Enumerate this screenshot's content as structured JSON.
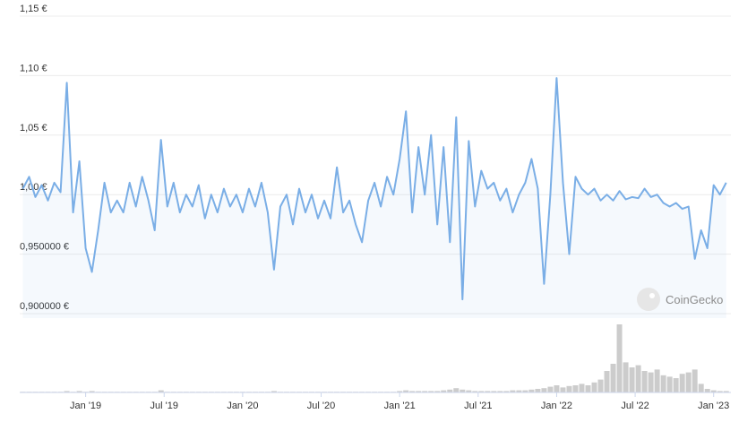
{
  "chart_data": {
    "type": "line",
    "watermark": "CoinGecko",
    "x": [
      2018.6,
      2018.64,
      2018.68,
      2018.72,
      2018.76,
      2018.8,
      2018.84,
      2018.88,
      2018.92,
      2018.96,
      2019.0,
      2019.04,
      2019.08,
      2019.12,
      2019.16,
      2019.2,
      2019.24,
      2019.28,
      2019.32,
      2019.36,
      2019.4,
      2019.44,
      2019.48,
      2019.52,
      2019.56,
      2019.6,
      2019.64,
      2019.68,
      2019.72,
      2019.76,
      2019.8,
      2019.84,
      2019.88,
      2019.92,
      2019.96,
      2020.0,
      2020.04,
      2020.08,
      2020.12,
      2020.16,
      2020.2,
      2020.24,
      2020.28,
      2020.32,
      2020.36,
      2020.4,
      2020.44,
      2020.48,
      2020.52,
      2020.56,
      2020.6,
      2020.64,
      2020.68,
      2020.72,
      2020.76,
      2020.8,
      2020.84,
      2020.88,
      2020.92,
      2020.96,
      2021.0,
      2021.04,
      2021.08,
      2021.12,
      2021.16,
      2021.2,
      2021.24,
      2021.28,
      2021.32,
      2021.36,
      2021.4,
      2021.44,
      2021.48,
      2021.52,
      2021.56,
      2021.6,
      2021.64,
      2021.68,
      2021.72,
      2021.76,
      2021.8,
      2021.84,
      2021.88,
      2021.92,
      2021.96,
      2022.0,
      2022.04,
      2022.08,
      2022.12,
      2022.16,
      2022.2,
      2022.24,
      2022.28,
      2022.32,
      2022.36,
      2022.4,
      2022.44,
      2022.48,
      2022.52,
      2022.56,
      2022.6,
      2022.64,
      2022.68,
      2022.72,
      2022.76,
      2022.8,
      2022.84,
      2022.88,
      2022.92,
      2022.96,
      2023.0,
      2023.04,
      2023.08
    ],
    "series": [
      {
        "color": "#7aaee6",
        "values": [
          1.005,
          1.015,
          0.998,
          1.008,
          0.995,
          1.01,
          1.002,
          1.094,
          0.985,
          1.028,
          0.955,
          0.935,
          0.97,
          1.01,
          0.985,
          0.995,
          0.985,
          1.01,
          0.99,
          1.015,
          0.995,
          0.97,
          1.046,
          0.99,
          1.01,
          0.985,
          1.0,
          0.99,
          1.008,
          0.98,
          1.0,
          0.985,
          1.005,
          0.99,
          1.0,
          0.985,
          1.005,
          0.99,
          1.01,
          0.985,
          0.937,
          0.99,
          1.0,
          0.975,
          1.005,
          0.985,
          1.0,
          0.98,
          0.995,
          0.98,
          1.023,
          0.985,
          0.995,
          0.975,
          0.96,
          0.995,
          1.01,
          0.99,
          1.015,
          1.0,
          1.03,
          1.07,
          0.985,
          1.04,
          1.0,
          1.05,
          0.975,
          1.04,
          0.96,
          1.065,
          0.912,
          1.045,
          0.99,
          1.02,
          1.005,
          1.01,
          0.995,
          1.005,
          0.985,
          1.0,
          1.01,
          1.03,
          1.005,
          0.925,
          1.0,
          1.098,
          1.01,
          0.95,
          1.015,
          1.005,
          1.0,
          1.005,
          0.995,
          1.0,
          0.995,
          1.003,
          0.996,
          0.998,
          0.997,
          1.005,
          0.998,
          1.0,
          0.993,
          0.99,
          0.993,
          0.988,
          0.99,
          0.946,
          0.97,
          0.955,
          1.008,
          1.0,
          1.01
        ]
      }
    ],
    "volume": {
      "color": "#cccccc",
      "ylim": [
        0,
        100
      ],
      "values": [
        1,
        1,
        1,
        1,
        1,
        1,
        1,
        2,
        1,
        2,
        1,
        2,
        1,
        1,
        1,
        1,
        1,
        1,
        1,
        1,
        1,
        1,
        3,
        1,
        1,
        1,
        1,
        1,
        1,
        1,
        1,
        1,
        1,
        1,
        1,
        1,
        1,
        1,
        1,
        1,
        2,
        1,
        1,
        1,
        1,
        1,
        1,
        1,
        1,
        1,
        1,
        1,
        1,
        1,
        1,
        1,
        1,
        1,
        1,
        1,
        2,
        3,
        2,
        2,
        2,
        2,
        2,
        3,
        4,
        6,
        4,
        3,
        2,
        2,
        2,
        2,
        2,
        2,
        3,
        3,
        3,
        4,
        5,
        6,
        8,
        10,
        7,
        9,
        10,
        12,
        10,
        14,
        18,
        30,
        40,
        95,
        42,
        35,
        38,
        30,
        28,
        32,
        24,
        22,
        20,
        26,
        28,
        32,
        12,
        5,
        3,
        2,
        2
      ]
    },
    "xlim": [
      2018.58,
      2023.11
    ],
    "ylim": [
      0.9,
      1.15
    ],
    "xticks": [
      {
        "value": 2019,
        "label": "Jan '19"
      },
      {
        "value": 2019.5,
        "label": "Jul '19"
      },
      {
        "value": 2020,
        "label": "Jan '20"
      },
      {
        "value": 2020.5,
        "label": "Jul '20"
      },
      {
        "value": 2021,
        "label": "Jan '21"
      },
      {
        "value": 2021.5,
        "label": "Jul '21"
      },
      {
        "value": 2022,
        "label": "Jan '22"
      },
      {
        "value": 2022.5,
        "label": "Jul '22"
      },
      {
        "value": 2023,
        "label": "Jan '23"
      }
    ],
    "yticks": [
      {
        "value": 0.9,
        "label": "0,900000 €"
      },
      {
        "value": 0.95,
        "label": "0,950000 €"
      },
      {
        "value": 1.0,
        "label": "1,00 €"
      },
      {
        "value": 1.05,
        "label": "1,05 €"
      },
      {
        "value": 1.1,
        "label": "1,10 €"
      },
      {
        "value": 1.15,
        "label": "1,15 €"
      }
    ],
    "grid": true
  }
}
